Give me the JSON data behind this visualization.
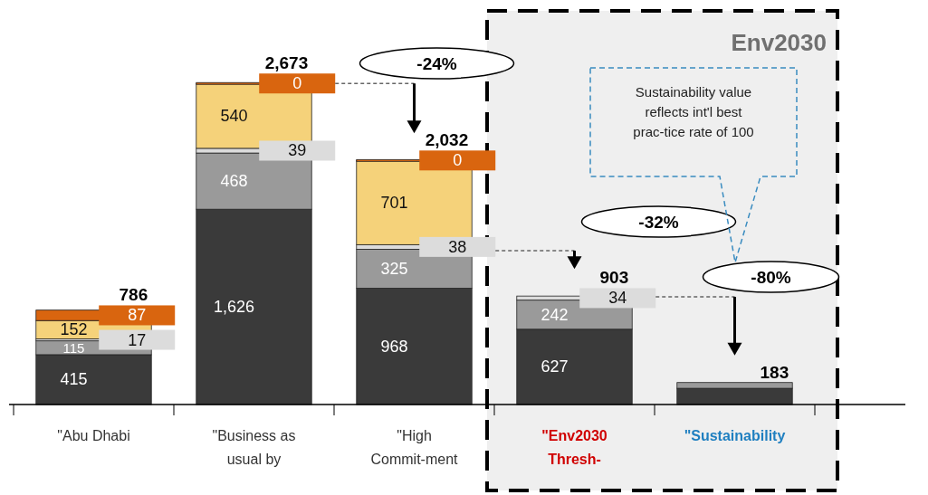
{
  "chart_data": {
    "type": "bar",
    "stacked": true,
    "categories": [
      "\"Abu Dhabi",
      "\"Business as usual by",
      "\"High Commit-ment",
      "\"Env2030 Thresh-",
      "\"Sustainability"
    ],
    "series": [
      {
        "color": "#3a3a3a",
        "values": [
          415,
          1626,
          968,
          627,
          135
        ],
        "value_labels": [
          "415",
          "1,626",
          "968",
          "627",
          null
        ]
      },
      {
        "color": "#9a9a9a",
        "values": [
          115,
          468,
          325,
          242,
          48
        ],
        "value_labels": [
          "115",
          "468",
          "325",
          "242",
          null
        ]
      },
      {
        "color": "#dcdcdc",
        "values": [
          17,
          39,
          38,
          34,
          null
        ],
        "value_labels": [
          "17",
          "39",
          "38",
          "34",
          null
        ]
      },
      {
        "color": "#f5d27a",
        "values": [
          152,
          540,
          701,
          null,
          null
        ],
        "value_labels": [
          "152",
          "540",
          "701",
          null,
          null
        ]
      },
      {
        "color": "#d9650f",
        "values": [
          87,
          0,
          0,
          null,
          null
        ],
        "value_labels": [
          "87",
          "0",
          "0",
          null,
          null
        ]
      }
    ],
    "totals": [
      "786",
      "2,673",
      "2,032",
      "903",
      "183"
    ],
    "annotations": [
      "-24%",
      "-32%",
      "-80%",
      "Sustainability value reflects int'l best prac-tice rate of 100",
      "Env2030"
    ]
  }
}
